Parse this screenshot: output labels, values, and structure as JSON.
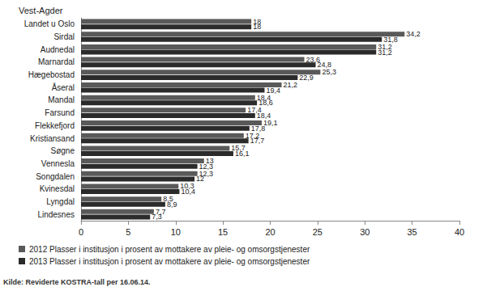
{
  "chart_data": {
    "type": "bar",
    "title": "Vest-Agder",
    "orientation": "horizontal",
    "categories": [
      "Landet u Oslo",
      "Sirdal",
      "Audnedal",
      "Marnardal",
      "Hægebostad",
      "Åseral",
      "Mandal",
      "Farsund",
      "Flekkefjord",
      "Kristiansand",
      "Søgne",
      "Vennesla",
      "Songdalen",
      "Kvinesdal",
      "Lyngdal",
      "Lindesnes"
    ],
    "series": [
      {
        "name": "2012 Plasser i institusjon i prosent av mottakere av pleie- og omsorgstjenester",
        "color": "#595959",
        "values": [
          18,
          34.2,
          31.2,
          23.6,
          25.3,
          21.2,
          18.4,
          17.4,
          19.1,
          17.2,
          15.7,
          13,
          12.3,
          10.3,
          8.5,
          7.7
        ],
        "value_labels": [
          "18",
          "34,2",
          "31,2",
          "23,6",
          "25,3",
          "21,2",
          "18,4",
          "17,4",
          "19,1",
          "17,2",
          "15,7",
          "13",
          "12,3",
          "10,3",
          "8,5",
          "7,7"
        ]
      },
      {
        "name": "2013 Plasser i institusjon i prosent av mottakere av pleie- og omsorgstjenester",
        "color": "#2b2b2b",
        "values": [
          18,
          31.8,
          31.2,
          24.8,
          22.9,
          19.4,
          18.6,
          18.4,
          17.8,
          17.7,
          16.1,
          12.3,
          12,
          10.4,
          8.9,
          7.3
        ],
        "value_labels": [
          "18",
          "31,8",
          "31,2",
          "24,8",
          "22,9",
          "19,4",
          "18,6",
          "18,4",
          "17,8",
          "17,7",
          "16,1",
          "12,3",
          "12",
          "10,4",
          "8,9",
          "7,3"
        ]
      }
    ],
    "xlim": [
      0,
      40
    ],
    "xticks": [
      0,
      5,
      10,
      15,
      20,
      25,
      30,
      35,
      40
    ],
    "grid": false,
    "data_labels": true,
    "legend": "bottom-left",
    "annotations": [
      "Kilde: Reviderte KOSTRA-tall per 16.06.14."
    ]
  }
}
